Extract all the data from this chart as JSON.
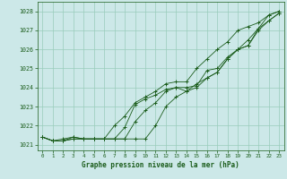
{
  "xlabel": "Graphe pression niveau de la mer (hPa)",
  "background_color": "#cce8e8",
  "grid_color": "#99ccbb",
  "line_color": "#1a5c1a",
  "x_hours": [
    0,
    1,
    2,
    3,
    4,
    5,
    6,
    7,
    8,
    9,
    10,
    11,
    12,
    13,
    14,
    15,
    16,
    17,
    18,
    19,
    20,
    21,
    22,
    23
  ],
  "line1": [
    1021.4,
    1021.2,
    1021.2,
    1021.4,
    1021.3,
    1021.3,
    1021.3,
    1021.3,
    1021.9,
    1023.1,
    1023.4,
    1023.6,
    1023.9,
    1024.0,
    1024.0,
    1024.1,
    1024.9,
    1025.0,
    1025.6,
    1026.0,
    1026.5,
    1027.1,
    1027.8,
    1028.0
  ],
  "line2": [
    1021.4,
    1021.2,
    1021.3,
    1021.4,
    1021.3,
    1021.3,
    1021.3,
    1022.0,
    1022.5,
    1023.2,
    1023.5,
    1023.8,
    1024.2,
    1024.3,
    1024.3,
    1025.0,
    1025.5,
    1026.0,
    1026.4,
    1027.0,
    1027.2,
    1027.4,
    1027.8,
    1028.0
  ],
  "line3": [
    1021.4,
    1021.2,
    1021.2,
    1021.3,
    1021.3,
    1021.3,
    1021.3,
    1021.3,
    1021.3,
    1022.2,
    1022.8,
    1023.2,
    1023.8,
    1024.0,
    1023.8,
    1024.2,
    1024.5,
    1024.8,
    1025.5,
    1026.0,
    1026.2,
    1027.1,
    1027.5,
    1027.9
  ],
  "line4": [
    1021.4,
    1021.2,
    1021.2,
    1021.3,
    1021.3,
    1021.3,
    1021.3,
    1021.3,
    1021.3,
    1021.3,
    1021.3,
    1022.0,
    1023.0,
    1023.5,
    1023.8,
    1024.0,
    1024.5,
    1024.8,
    1025.5,
    1026.0,
    1026.2,
    1027.0,
    1027.5,
    1027.9
  ],
  "ylim": [
    1020.7,
    1028.5
  ],
  "yticks": [
    1021,
    1022,
    1023,
    1024,
    1025,
    1026,
    1027,
    1028
  ],
  "xticks": [
    0,
    1,
    2,
    3,
    4,
    5,
    6,
    7,
    8,
    9,
    10,
    11,
    12,
    13,
    14,
    15,
    16,
    17,
    18,
    19,
    20,
    21,
    22,
    23
  ]
}
